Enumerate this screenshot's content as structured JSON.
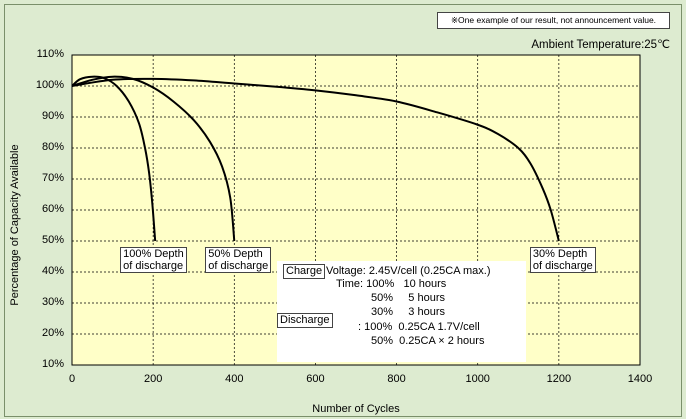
{
  "note": "※One example of our result, not announcement value.",
  "ambient": "Ambient Temperature:25℃",
  "chart_data": {
    "type": "line",
    "xlabel": "Number of Cycles",
    "ylabel": "Percentage of Capacity Available",
    "xlim": [
      0,
      1400
    ],
    "ylim": [
      10,
      110
    ],
    "xticks": [
      "0",
      "200",
      "400",
      "600",
      "800",
      "1000",
      "1200",
      "1400"
    ],
    "yticks": [
      "110%",
      "100%",
      "90%",
      "80%",
      "70%",
      "60%",
      "50%",
      "40%",
      "30%",
      "20%",
      "10%"
    ],
    "grid": true,
    "series": [
      {
        "name": "100% Depth of discharge",
        "points": [
          [
            0,
            100
          ],
          [
            20,
            102.2
          ],
          [
            50,
            103
          ],
          [
            80,
            102.5
          ],
          [
            110,
            100
          ],
          [
            140,
            95
          ],
          [
            165,
            88
          ],
          [
            180,
            80
          ],
          [
            190,
            72
          ],
          [
            198,
            62
          ],
          [
            205,
            50
          ]
        ],
        "label_lines": [
          "100% Depth",
          "of discharge"
        ]
      },
      {
        "name": "50% Depth of discharge",
        "points": [
          [
            0,
            100
          ],
          [
            50,
            102
          ],
          [
            100,
            103
          ],
          [
            150,
            102.3
          ],
          [
            200,
            99.5
          ],
          [
            250,
            95
          ],
          [
            300,
            89
          ],
          [
            340,
            82
          ],
          [
            370,
            74
          ],
          [
            390,
            64
          ],
          [
            400,
            50
          ]
        ],
        "label_lines": [
          "50% Depth",
          "of discharge"
        ]
      },
      {
        "name": "30% Depth of discharge",
        "points": [
          [
            0,
            100
          ],
          [
            100,
            102
          ],
          [
            200,
            102.3
          ],
          [
            300,
            101.8
          ],
          [
            400,
            100.8
          ],
          [
            500,
            99.8
          ],
          [
            600,
            98.6
          ],
          [
            700,
            97
          ],
          [
            800,
            95
          ],
          [
            900,
            91.5
          ],
          [
            1000,
            87.5
          ],
          [
            1050,
            84.5
          ],
          [
            1100,
            80
          ],
          [
            1130,
            75
          ],
          [
            1160,
            67
          ],
          [
            1180,
            60
          ],
          [
            1200,
            50
          ]
        ],
        "label_lines": [
          "30% Depth",
          "of discharge"
        ]
      }
    ]
  },
  "conditions": {
    "charge_tag": "Charge",
    "voltage": "Voltage: 2.45V/cell (0.25CA max.)",
    "time_rows": [
      "Time: 100%   10 hours",
      "50%     5 hours",
      "30%     3 hours"
    ],
    "discharge_tag": "Discharge",
    "discharge_rows": [
      ": 100%  0.25CA 1.7V/cell",
      "50%  0.25CA × 2 hours"
    ]
  }
}
